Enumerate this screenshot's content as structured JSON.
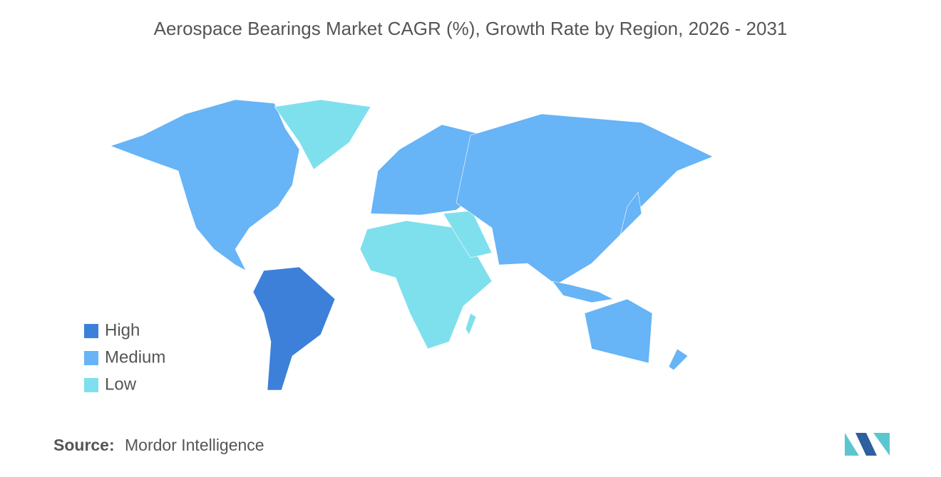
{
  "title": "Aerospace Bearings Market CAGR (%), Growth Rate by Region, 2026 - 2031",
  "legend": [
    {
      "label": "High",
      "color": "#3d80da"
    },
    {
      "label": "Medium",
      "color": "#67b4f6"
    },
    {
      "label": "Low",
      "color": "#7ee0ed"
    }
  ],
  "source": {
    "label": "Source:",
    "text": "Mordor Intelligence"
  }
}
